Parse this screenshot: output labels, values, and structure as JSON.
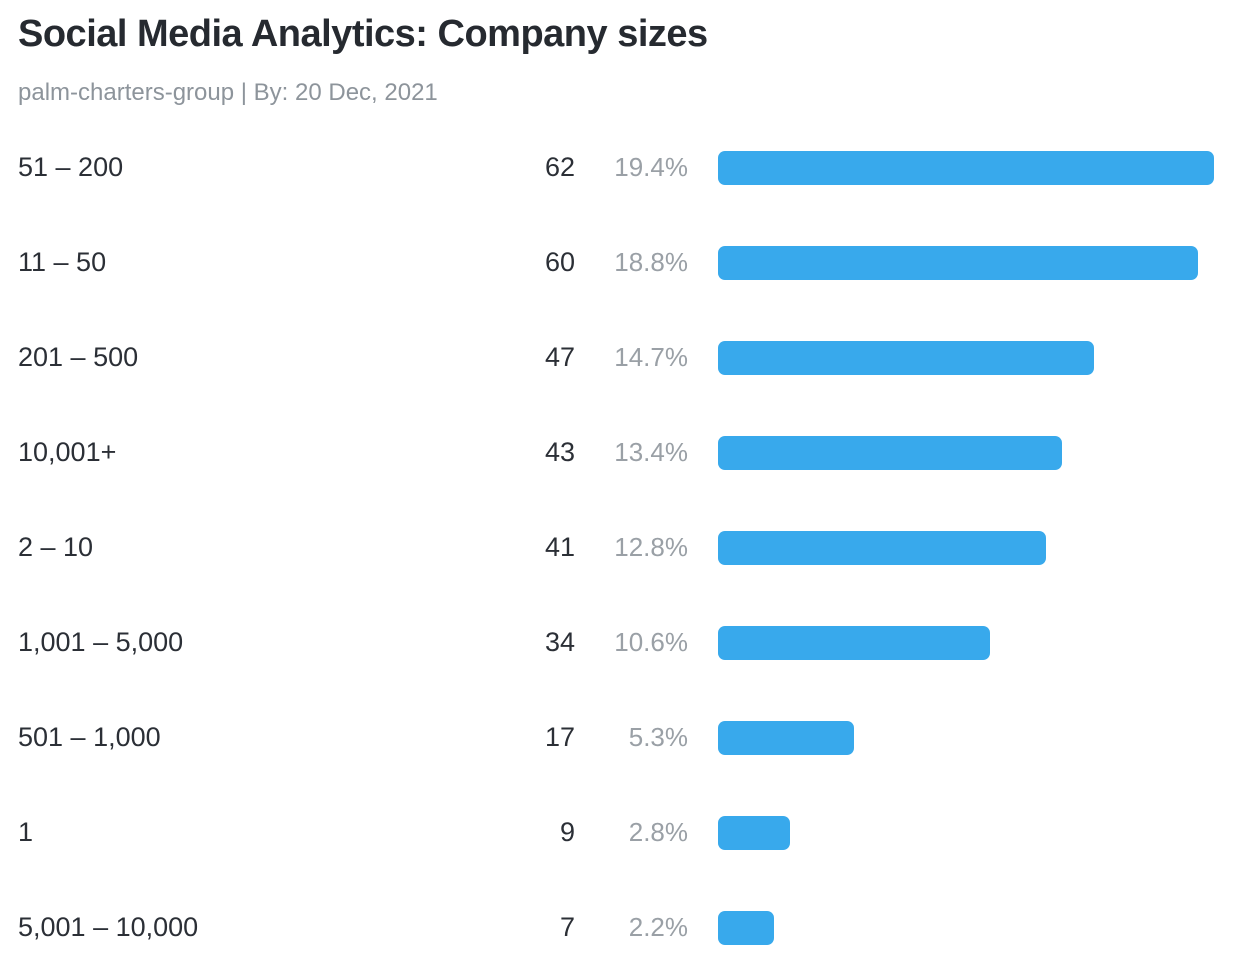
{
  "header": {
    "title": "Social Media Analytics: Company sizes",
    "byline": "palm-charters-group | By: 20 Dec, 2021"
  },
  "chart_data": {
    "type": "bar",
    "orientation": "horizontal",
    "title": "Social Media Analytics: Company sizes",
    "categories": [
      "51 – 200",
      "11 – 50",
      "201 – 500",
      "10,001+",
      "2 – 10",
      "1,001 – 5,000",
      "501 – 1,000",
      "1",
      "5,001 – 10,000"
    ],
    "values": [
      62,
      60,
      47,
      43,
      41,
      34,
      17,
      9,
      7
    ],
    "percentages": [
      19.4,
      18.8,
      14.7,
      13.4,
      12.8,
      10.6,
      5.3,
      2.8,
      2.2
    ],
    "percent_labels": [
      "19.4%",
      "18.8%",
      "14.7%",
      "13.4%",
      "12.8%",
      "10.6%",
      "5.3%",
      "2.8%",
      "2.2%"
    ],
    "max_value": 62,
    "bar_color": "#38a9ec",
    "legend": "none",
    "grid": false
  }
}
